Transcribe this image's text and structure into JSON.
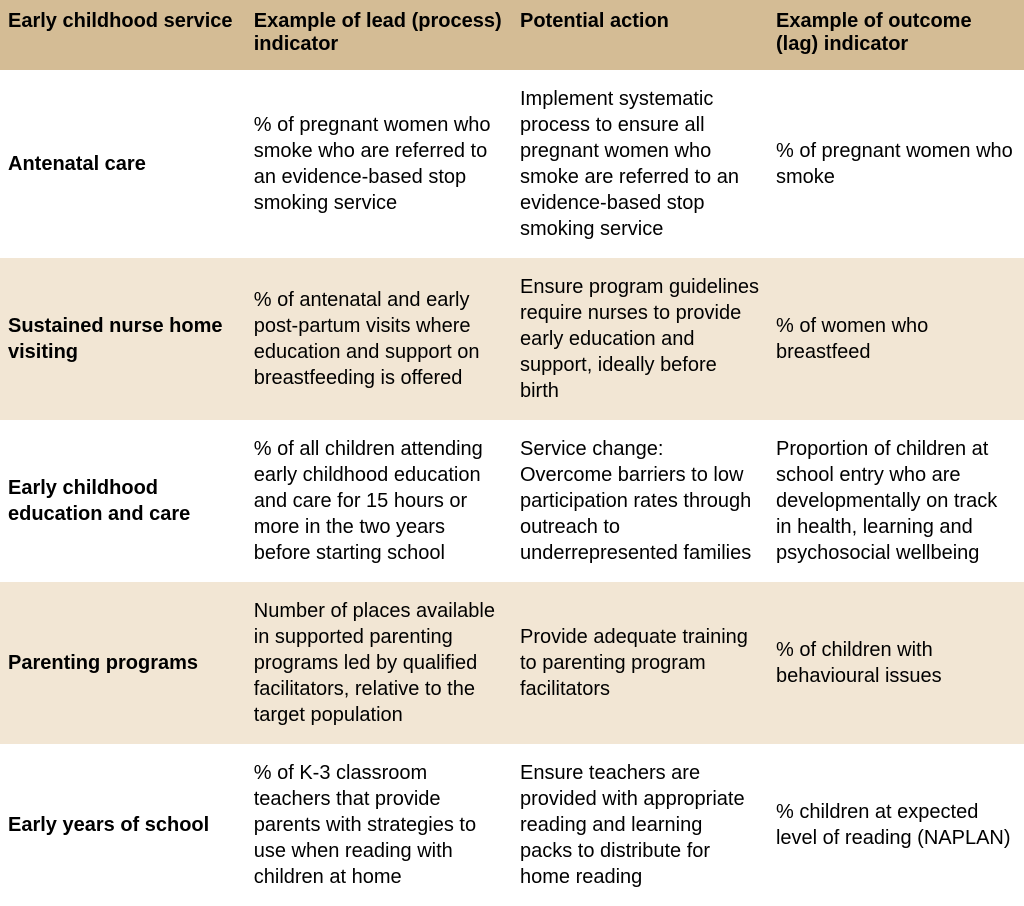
{
  "table": {
    "header_bg": "#d4bc95",
    "row_bg_odd": "#ffffff",
    "row_bg_even": "#f2e6d4",
    "text_color": "#000000",
    "font_size_pt": 15,
    "columns": [
      {
        "label": "Early childhood service",
        "width_pct": 24
      },
      {
        "label": "Example of lead (process) indicator",
        "width_pct": 26
      },
      {
        "label": "Potential action",
        "width_pct": 25
      },
      {
        "label": "Example of outcome (lag) indicator",
        "width_pct": 25
      }
    ],
    "rows": [
      {
        "service": "Antenatal care",
        "lead": "% of pregnant women who smoke who are referred to an evidence-based stop smoking service",
        "action": "Implement systematic process to ensure all pregnant women who smoke are referred to an evidence-based stop smoking service",
        "outcome": "% of pregnant women who smoke"
      },
      {
        "service": "Sustained nurse home visiting",
        "lead": "% of antenatal and early post-partum visits where education and support on breastfeeding is offered",
        "action": "Ensure program guidelines require nurses to provide early education and support, ideally before birth",
        "outcome": "% of women who breastfeed"
      },
      {
        "service": "Early childhood education and care",
        "lead": "% of all children attending early childhood education and care for 15 hours or more in the two years before starting school",
        "action": "Service change: Overcome barriers to low participation rates through outreach to underrepresented families",
        "outcome": "Proportion of children at school entry who are developmentally on track in health, learning and psychosocial wellbeing"
      },
      {
        "service": "Parenting programs",
        "lead": "Number of places available in supported parenting programs led by qualified facilitators, relative to the target population",
        "action": "Provide adequate training to parenting program facilitators",
        "outcome": "% of children with behavioural issues"
      },
      {
        "service": "Early years of school",
        "lead": "% of K-3 classroom teachers that provide parents with strategies to use when reading with children at home",
        "action": "Ensure teachers are provided with appropriate reading and learning packs to distribute for home reading",
        "outcome": "% children at expected level of reading (NAPLAN)"
      }
    ]
  }
}
